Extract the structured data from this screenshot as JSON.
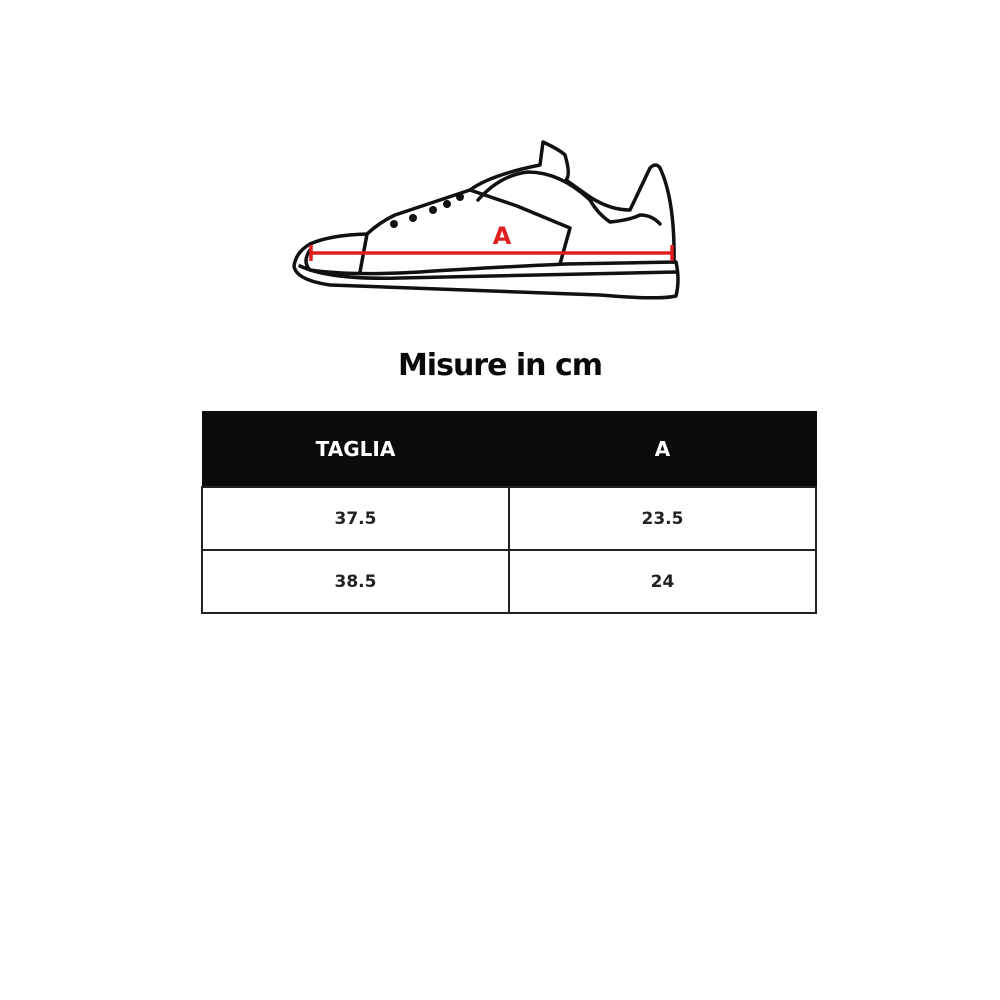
{
  "illustration": {
    "marker_label": "A",
    "marker_color": "#e02020",
    "subject": "sneaker-side-view"
  },
  "title": "Misure in cm",
  "table": {
    "headers": [
      "TAGLIA",
      "A"
    ],
    "rows": [
      [
        "37.5",
        "23.5"
      ],
      [
        "38.5",
        "24"
      ]
    ]
  }
}
